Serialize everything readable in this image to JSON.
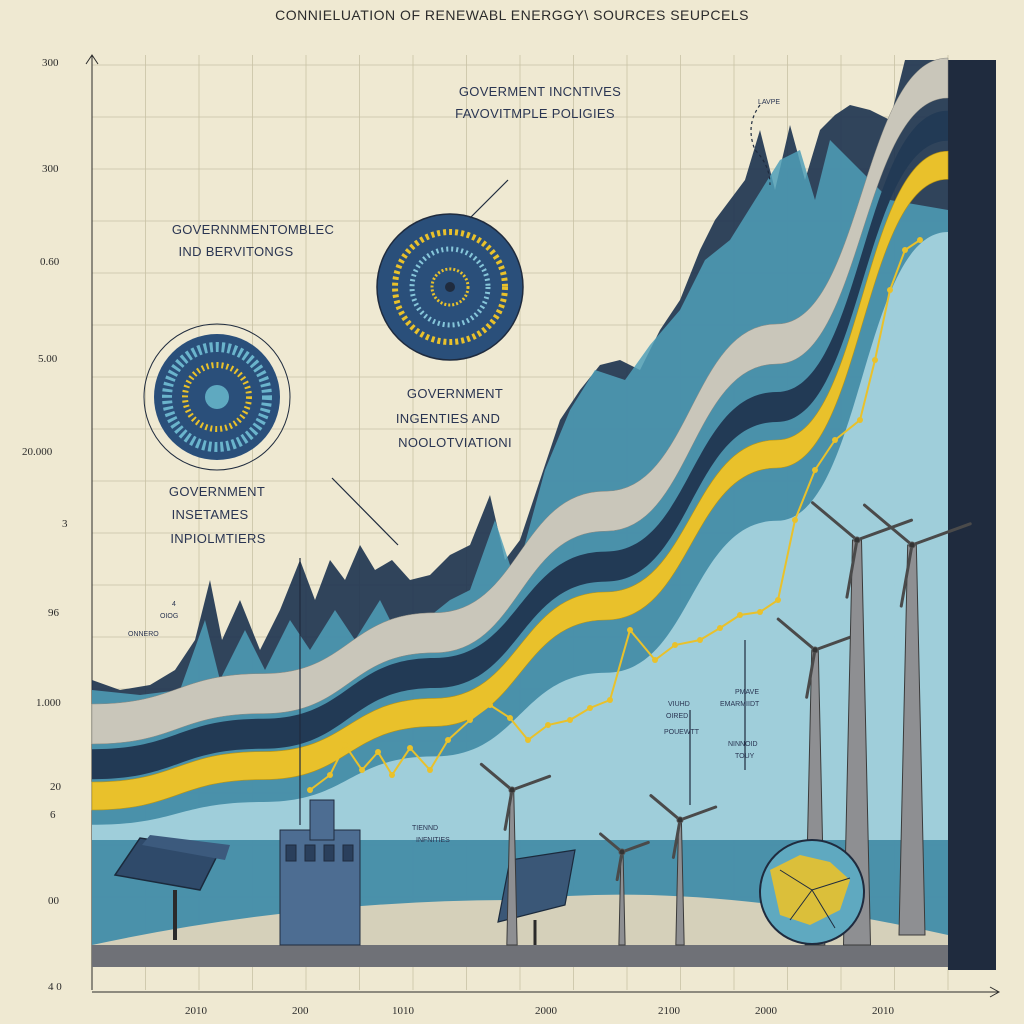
{
  "chart_data": {
    "type": "area",
    "title": "CONNIELUATION OF RENEWABL ENERGGY\\ SOURCES  SEUPCELS",
    "y_tick_labels": [
      "300",
      "300",
      "0.60",
      "5.00",
      "20.000",
      "3",
      "96",
      "1.000",
      "20",
      "6",
      "00",
      "4 0"
    ],
    "x_tick_labels": [
      "2010",
      "200",
      "1010",
      "2000",
      "2100",
      "2000",
      "2010"
    ],
    "grid": true,
    "legend": "none",
    "colors": {
      "background": "#efe9d2",
      "navy": "#1f3550",
      "teal": "#4a9bb5",
      "light_blue": "#9fd0dc",
      "yellow": "#e9c12b",
      "gray": "#c5c2b6",
      "ink": "#2a3552"
    },
    "series": [
      {
        "values": [
          10,
          14,
          22,
          38,
          60,
          95
        ]
      },
      {
        "values": [
          8,
          12,
          20,
          34,
          55,
          92
        ]
      },
      {
        "values": [
          5,
          9,
          16,
          30,
          50,
          88
        ]
      },
      {
        "values": [
          2,
          5,
          11,
          22,
          42,
          80
        ]
      }
    ],
    "annotations": [
      {
        "line1": "GOVERMENT INCNTIVES",
        "line2": "FAVOVITMPLE POLIGIES"
      },
      {
        "line1": "GOVERNNMENTOMBLEC",
        "line2": "IND BERVITONGS"
      },
      {
        "line1": "GOVERNMENT",
        "line2": "INGENTIES AND",
        "line3": "NOOLOTVIATIONI"
      },
      {
        "line1": "GOVERNMENT",
        "line2": "INSETAMES",
        "line3": "INPIOLMTIERS"
      }
    ],
    "small_labels": [
      "4",
      "OIOG",
      "ONNERO",
      "VIUHD",
      "OIRED",
      "POUEWTT",
      "PMAVE",
      "EMARMIIDT",
      "NINNOID",
      "TOUY",
      "TIENND",
      "INFNITIES",
      "LAVPE"
    ]
  }
}
